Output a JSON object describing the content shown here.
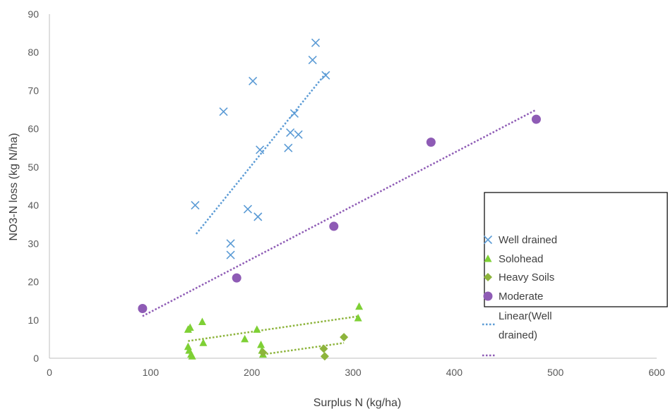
{
  "chart_data": {
    "type": "scatter",
    "title": "",
    "xlabel": "Surplus N (kg/ha)",
    "ylabel": "NO3-N loss (kg N/ha)",
    "xlim": [
      0,
      600
    ],
    "ylim": [
      0,
      90
    ],
    "xticks": [
      0,
      100,
      200,
      300,
      400,
      500,
      600
    ],
    "yticks": [
      0,
      10,
      20,
      30,
      40,
      50,
      60,
      70,
      80,
      90
    ],
    "grid": false,
    "legend_position": "right",
    "series": [
      {
        "name": "Well drained",
        "marker": "x",
        "color": "#5b9bd5",
        "points": [
          [
            144,
            40
          ],
          [
            172,
            64.5
          ],
          [
            179,
            30
          ],
          [
            179,
            27
          ],
          [
            196,
            39
          ],
          [
            201,
            72.5
          ],
          [
            206,
            37
          ],
          [
            208,
            54.5
          ],
          [
            236,
            55
          ],
          [
            238,
            59
          ],
          [
            242,
            64
          ],
          [
            246,
            58.5
          ],
          [
            260,
            78
          ],
          [
            263,
            82.5
          ],
          [
            273,
            74
          ]
        ]
      },
      {
        "name": "Solohead",
        "marker": "triangle",
        "color": "#7ed035",
        "points": [
          [
            137,
            3
          ],
          [
            137,
            7.5
          ],
          [
            138,
            2
          ],
          [
            139,
            8
          ],
          [
            140,
            1
          ],
          [
            141,
            0.5
          ],
          [
            151,
            9.5
          ],
          [
            152,
            4
          ],
          [
            193,
            5
          ],
          [
            205,
            7.5
          ],
          [
            209,
            3.5
          ],
          [
            210,
            2
          ],
          [
            211,
            1
          ],
          [
            305,
            10.5
          ],
          [
            306,
            13.5
          ]
        ]
      },
      {
        "name": "Heavy Soils",
        "marker": "diamond",
        "color": "#8db43c",
        "points": [
          [
            211,
            1.5
          ],
          [
            271,
            2.5
          ],
          [
            272,
            0.5
          ],
          [
            291,
            5.5
          ]
        ]
      },
      {
        "name": "Moderate",
        "marker": "circle",
        "color": "#8e5bb5",
        "points": [
          [
            92,
            13
          ],
          [
            185,
            21
          ],
          [
            281,
            34.5
          ],
          [
            377,
            56.5
          ],
          [
            481,
            62.5
          ]
        ]
      }
    ],
    "trendlines": [
      {
        "series": "Well drained",
        "x": [
          145,
          273
        ],
        "y": [
          32.5,
          74.5
        ],
        "color": "#5b9bd5"
      },
      {
        "series": "Moderate",
        "x": [
          92,
          481
        ],
        "y": [
          11,
          65
        ],
        "color": "#8e5bb5"
      },
      {
        "series": "Solohead",
        "x": [
          137,
          306
        ],
        "y": [
          4.5,
          11
        ],
        "color": "#8db43c"
      },
      {
        "series": "Heavy Soils",
        "x": [
          211,
          291
        ],
        "y": [
          1,
          4
        ],
        "color": "#8db43c"
      }
    ],
    "legend": [
      {
        "label": "Well drained",
        "symbol": "x",
        "color": "#5b9bd5"
      },
      {
        "label": "Solohead",
        "symbol": "triangle",
        "color": "#7ed035"
      },
      {
        "label": "Heavy Soils",
        "symbol": "diamond",
        "color": "#8db43c"
      },
      {
        "label": "Moderate",
        "symbol": "circle",
        "color": "#8e5bb5"
      },
      {
        "label": "Linear(Well",
        "label2": "drained)",
        "symbol": "dotted-line",
        "color": "#5b9bd5"
      },
      {
        "label": "",
        "symbol": "dotted-line",
        "color": "#8e5bb5"
      }
    ]
  }
}
